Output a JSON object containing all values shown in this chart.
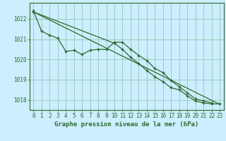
{
  "title": "Graphe pression niveau de la mer (hPa)",
  "background_color": "#cceeff",
  "grid_color": "#99ccbb",
  "line_color": "#2d6a2d",
  "xlim": [
    -0.5,
    23.5
  ],
  "ylim": [
    1017.5,
    1022.8
  ],
  "yticks": [
    1018,
    1019,
    1020,
    1021,
    1022
  ],
  "xticks": [
    0,
    1,
    2,
    3,
    4,
    5,
    6,
    7,
    8,
    9,
    10,
    11,
    12,
    13,
    14,
    15,
    16,
    17,
    18,
    19,
    20,
    21,
    22,
    23
  ],
  "series1_x": [
    0,
    1,
    2,
    3,
    4,
    5,
    6,
    7,
    8,
    9,
    10,
    11,
    12,
    13,
    14,
    15,
    16,
    17,
    18,
    19,
    20,
    21,
    22
  ],
  "series1_y": [
    1022.4,
    1021.4,
    1021.2,
    1021.05,
    1020.4,
    1020.45,
    1020.25,
    1020.45,
    1020.5,
    1020.5,
    1020.85,
    1020.85,
    1020.5,
    1020.2,
    1019.95,
    1019.55,
    1019.35,
    1018.95,
    1018.65,
    1018.35,
    1018.05,
    1017.95,
    1017.85
  ],
  "series2_x": [
    0,
    10,
    11,
    12,
    13,
    14,
    15,
    16,
    17,
    18,
    19,
    20,
    21,
    22,
    23
  ],
  "series2_y": [
    1022.35,
    1020.8,
    1020.5,
    1020.1,
    1019.8,
    1019.45,
    1019.15,
    1018.9,
    1018.6,
    1018.5,
    1018.2,
    1017.95,
    1017.85,
    1017.8,
    1017.8
  ],
  "series3_x": [
    0,
    23
  ],
  "series3_y": [
    1022.35,
    1017.78
  ],
  "tick_fontsize": 5.5,
  "xlabel_fontsize": 6.5
}
